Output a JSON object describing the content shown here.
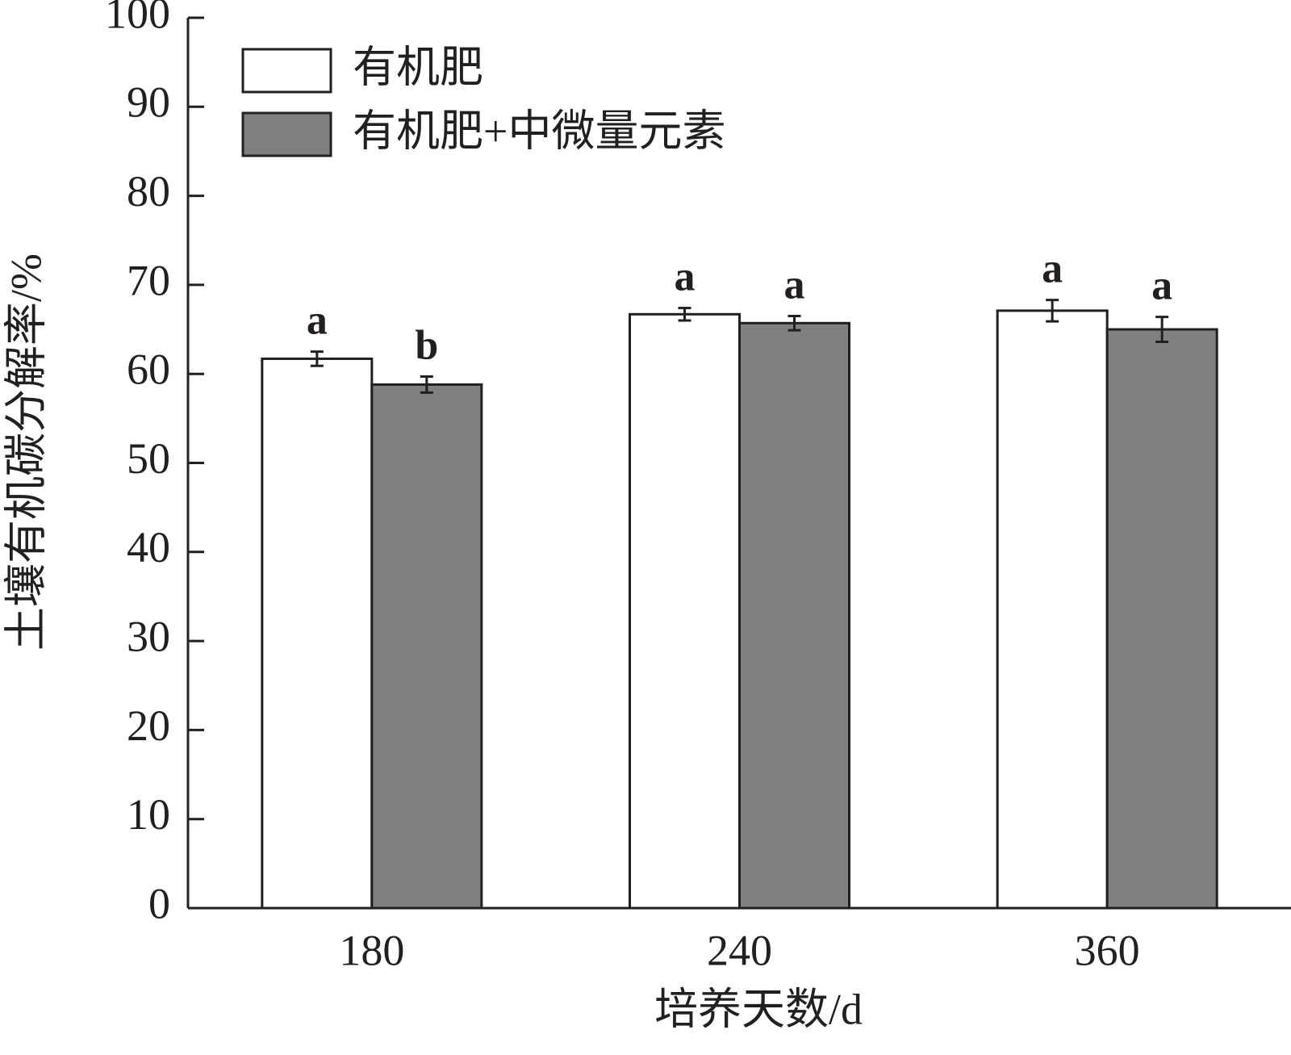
{
  "chart_data": {
    "type": "bar",
    "x_label": "培养天数/d",
    "y_label": "土壤有机碳分解率/%",
    "categories": [
      "180",
      "240",
      "360"
    ],
    "series": [
      {
        "name": "有机肥",
        "color": "#ffffff",
        "values": [
          61.7,
          66.7,
          67.1
        ],
        "errors": [
          0.8,
          0.7,
          1.2
        ],
        "labels": [
          "a",
          "a",
          "a"
        ]
      },
      {
        "name": "有机肥+中微量元素",
        "color": "#808080",
        "values": [
          58.8,
          65.7,
          65.0
        ],
        "errors": [
          0.9,
          0.8,
          1.4
        ],
        "labels": [
          "b",
          "a",
          "a"
        ]
      }
    ],
    "ylim": [
      0,
      100
    ],
    "yticks": [
      0,
      10,
      20,
      30,
      40,
      50,
      60,
      70,
      80,
      90,
      100
    ],
    "legend": "upper left"
  }
}
